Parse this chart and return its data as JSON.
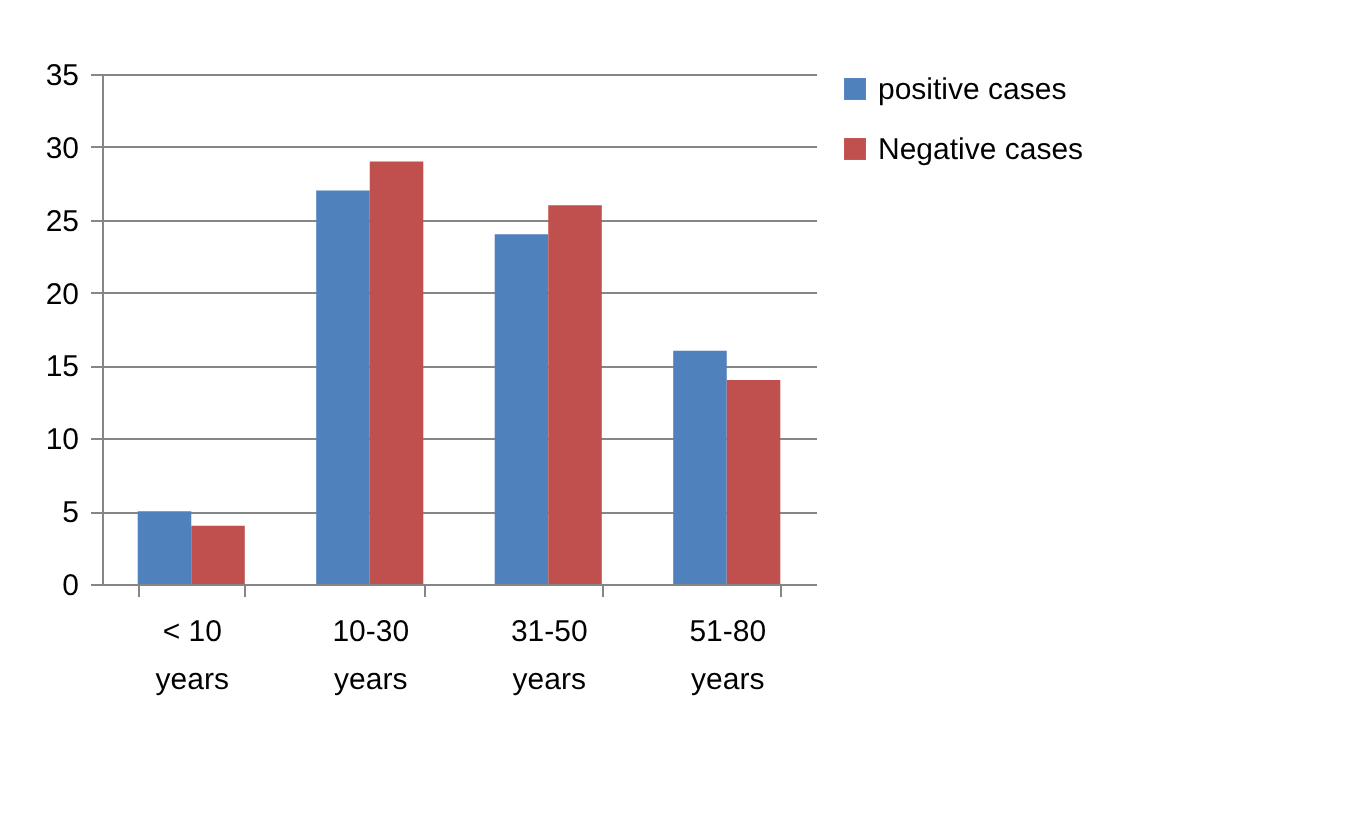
{
  "chart_data": {
    "type": "bar",
    "categories": [
      "< 10 years",
      "10-30 years",
      "31-50 years",
      "51-80 years"
    ],
    "series": [
      {
        "name": "positive cases",
        "color": "#4f81bd",
        "values": [
          5,
          27,
          24,
          16
        ]
      },
      {
        "name": "Negative cases",
        "color": "#c0504d",
        "values": [
          4,
          29,
          26,
          14
        ]
      }
    ],
    "ylim": [
      0,
      35
    ],
    "yticks": [
      0,
      5,
      10,
      15,
      20,
      25,
      30,
      35
    ],
    "grid": "y",
    "legend": "right"
  }
}
